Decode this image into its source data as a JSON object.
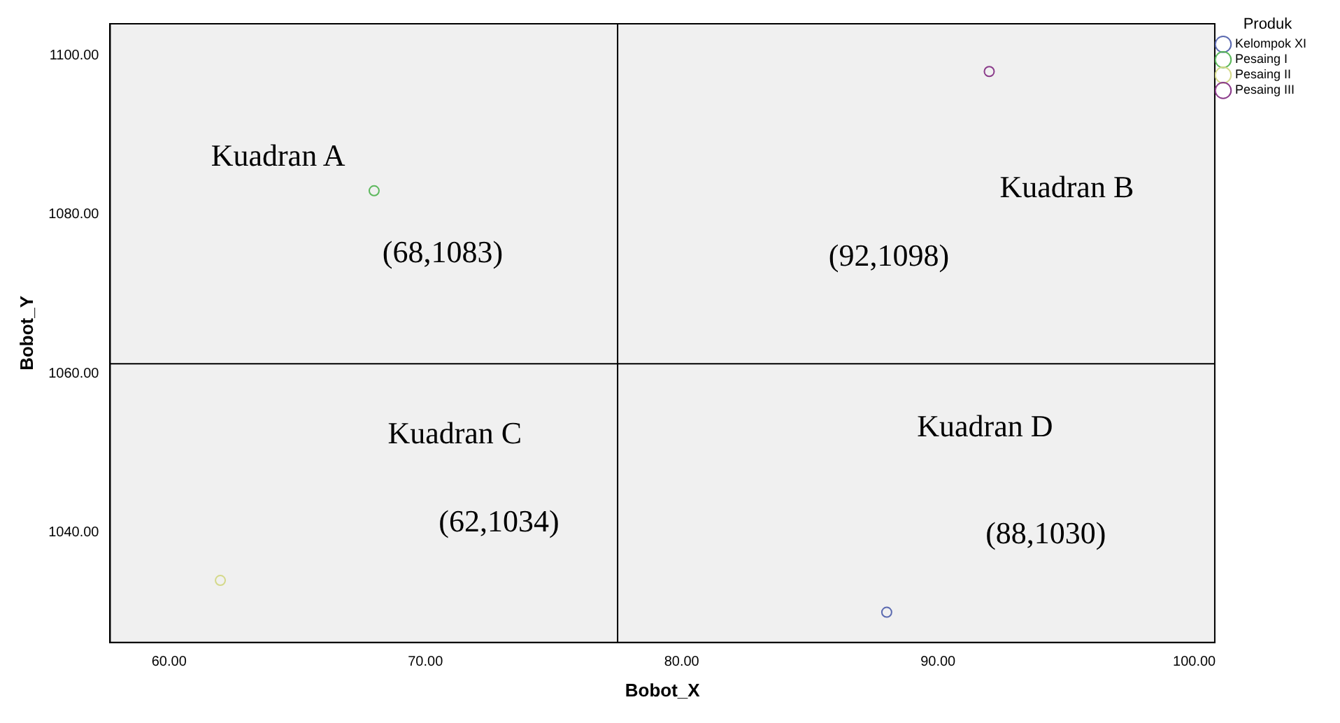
{
  "chart_data": {
    "type": "scatter",
    "xlabel": "Bobot_X",
    "ylabel": "Bobot_Y",
    "legend_title": "Produk",
    "legend": "top right",
    "marker": "circle",
    "grid": false,
    "xlim": [
      57.7,
      100.8
    ],
    "xticks": [
      {
        "value": 60,
        "label": "60.00"
      },
      {
        "value": 70,
        "label": "70.00"
      },
      {
        "value": 80,
        "label": "80.00"
      },
      {
        "value": 90,
        "label": "90.00"
      },
      {
        "value": 100,
        "label": "100.00"
      }
    ],
    "ylim": [
      1026.2,
      1104
    ],
    "yticks": [
      {
        "value": 1040,
        "label": "1040.00"
      },
      {
        "value": 1060,
        "label": "1060.00"
      },
      {
        "value": 1080,
        "label": "1080.00"
      },
      {
        "value": 1100,
        "label": "1100.00"
      }
    ],
    "series": [
      {
        "name": "Kelompok XI",
        "color": "#5b6ab0",
        "x": [
          88
        ],
        "values": [
          1030
        ]
      },
      {
        "name": "Pesaing I",
        "color": "#5cb85c",
        "x": [
          68
        ],
        "values": [
          1083
        ]
      },
      {
        "name": "Pesaing II",
        "color": "#d4d98a",
        "x": [
          62
        ],
        "values": [
          1034
        ]
      },
      {
        "name": "Pesaing III",
        "color": "#8b3c8b",
        "x": [
          92
        ],
        "values": [
          1098
        ]
      }
    ],
    "ref_lines": [
      {
        "axis": "x",
        "value": 77.5,
        "color": "#000000"
      },
      {
        "axis": "y",
        "value": 1061.25,
        "color": "#000000"
      }
    ],
    "annotations": [
      "Kuadran A",
      "(68,1083)",
      "Kuadran B",
      "(92,1098)",
      "Kuadran C",
      "(62,1034)",
      "Kuadran D",
      "(88,1030)"
    ]
  }
}
